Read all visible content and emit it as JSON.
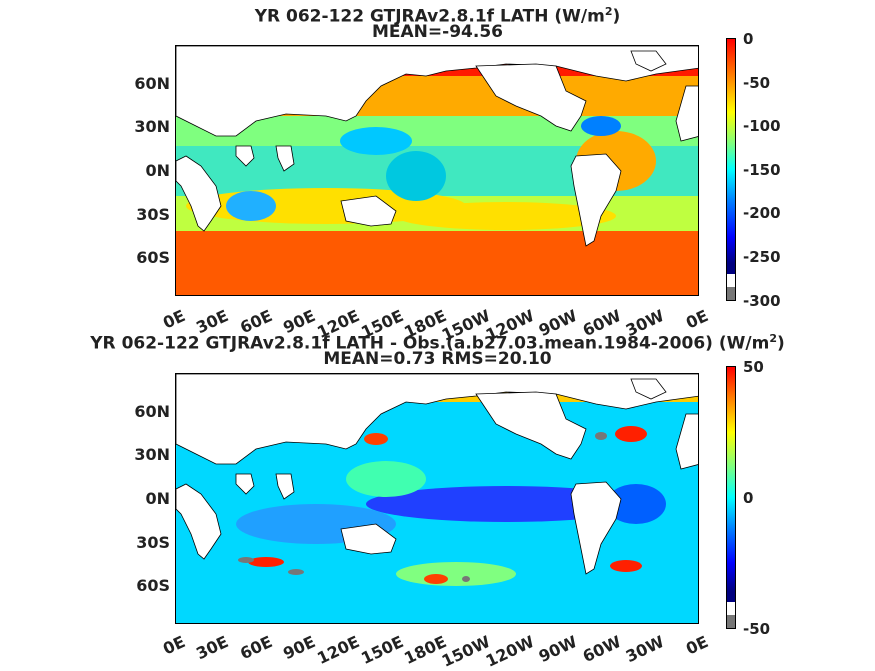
{
  "top": {
    "title_line1": "YR 062-122 GTJRAv2.8.1f  LATH (W/m",
    "title_sup": "2",
    "title_line1_end": ")",
    "title_line2": "MEAN=-94.56",
    "y_ticks": [
      "60N",
      "30N",
      "0N",
      "30S",
      "60S"
    ],
    "x_ticks": [
      "0E",
      "30E",
      "60E",
      "90E",
      "120E",
      "150E",
      "180E",
      "150W",
      "120W",
      "90W",
      "60W",
      "30W",
      "0E"
    ],
    "colorbar_ticks": [
      "0",
      "-50",
      "-100",
      "-150",
      "-200",
      "-250",
      "-300"
    ]
  },
  "bottom": {
    "title_line1": "YR 062-122 GTJRAv2.8.1f LATH - Obs.(a.b27.03.mean.1984-2006) (W/m",
    "title_sup": "2",
    "title_line1_end": ")",
    "title_line2": "MEAN=0.73 RMS=20.10",
    "y_ticks": [
      "60N",
      "30N",
      "0N",
      "30S",
      "60S"
    ],
    "x_ticks": [
      "0E",
      "30E",
      "60E",
      "90E",
      "120E",
      "150E",
      "180E",
      "150W",
      "120W",
      "90W",
      "60W",
      "30W",
      "0E"
    ],
    "colorbar_ticks": [
      "50",
      "0",
      "-50"
    ]
  },
  "colors": {
    "land": "#ffffff",
    "missing": "#777777",
    "jet": [
      "#00007f",
      "#0000ff",
      "#007fff",
      "#00ffff",
      "#7fff7f",
      "#ffff00",
      "#ff7f00",
      "#ff0000",
      "#7f0000"
    ]
  }
}
